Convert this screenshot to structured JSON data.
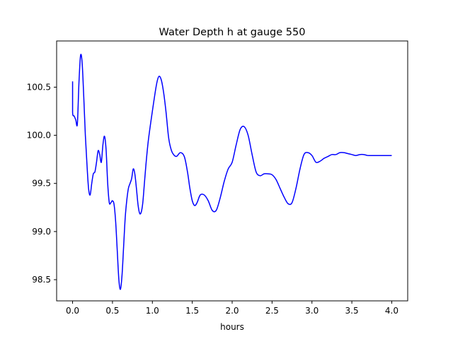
{
  "chart_data": {
    "type": "line",
    "title": "Water Depth h at gauge 550",
    "xlabel": "hours",
    "ylabel": "",
    "xlim": [
      -0.2,
      4.2
    ],
    "ylim": [
      98.28,
      100.98
    ],
    "xticks": [
      0.0,
      0.5,
      1.0,
      1.5,
      2.0,
      2.5,
      3.0,
      3.5,
      4.0
    ],
    "xtick_labels": [
      "0.0",
      "0.5",
      "1.0",
      "1.5",
      "2.0",
      "2.5",
      "3.0",
      "3.5",
      "4.0"
    ],
    "yticks": [
      98.5,
      99.0,
      99.5,
      100.0,
      100.5
    ],
    "ytick_labels": [
      "98.5",
      "99.0",
      "99.5",
      "100.0",
      "100.5"
    ],
    "grid": false,
    "line_color": "#0000ff",
    "series": [
      {
        "x": [
          0.0,
          0.0,
          0.02,
          0.04,
          0.06,
          0.08,
          0.1,
          0.12,
          0.14,
          0.16,
          0.18,
          0.2,
          0.22,
          0.24,
          0.26,
          0.28,
          0.3,
          0.32,
          0.34,
          0.36,
          0.38,
          0.4,
          0.42,
          0.44,
          0.46,
          0.48,
          0.5,
          0.52,
          0.54,
          0.56,
          0.58,
          0.6,
          0.62,
          0.64,
          0.66,
          0.68,
          0.7,
          0.72,
          0.74,
          0.76,
          0.78,
          0.8,
          0.82,
          0.84,
          0.86,
          0.88,
          0.9,
          0.92,
          0.95,
          1.0,
          1.05,
          1.08,
          1.11,
          1.14,
          1.17,
          1.2,
          1.22,
          1.25,
          1.3,
          1.35,
          1.4,
          1.44,
          1.47,
          1.5,
          1.53,
          1.56,
          1.6,
          1.65,
          1.7,
          1.75,
          1.8,
          1.85,
          1.9,
          1.95,
          2.0,
          2.05,
          2.1,
          2.15,
          2.2,
          2.25,
          2.3,
          2.35,
          2.4,
          2.45,
          2.5,
          2.55,
          2.6,
          2.65,
          2.7,
          2.75,
          2.8,
          2.85,
          2.9,
          2.95,
          3.0,
          3.05,
          3.1,
          3.15,
          3.2,
          3.25,
          3.3,
          3.35,
          3.4,
          3.45,
          3.5,
          3.55,
          3.6,
          3.65,
          3.7,
          3.75,
          3.8,
          3.85,
          3.9,
          3.95,
          4.0
        ],
        "y": [
          100.56,
          100.24,
          100.2,
          100.16,
          100.12,
          100.55,
          100.83,
          100.75,
          100.4,
          100.0,
          99.7,
          99.45,
          99.38,
          99.5,
          99.6,
          99.62,
          99.72,
          99.84,
          99.8,
          99.72,
          99.9,
          99.99,
          99.85,
          99.5,
          99.3,
          99.3,
          99.32,
          99.28,
          99.1,
          98.8,
          98.5,
          98.4,
          98.55,
          98.85,
          99.15,
          99.33,
          99.45,
          99.5,
          99.55,
          99.65,
          99.6,
          99.45,
          99.28,
          99.19,
          99.2,
          99.3,
          99.5,
          99.7,
          99.95,
          100.25,
          100.52,
          100.61,
          100.58,
          100.45,
          100.25,
          100.0,
          99.9,
          99.82,
          99.78,
          99.82,
          99.78,
          99.62,
          99.45,
          99.32,
          99.27,
          99.3,
          99.38,
          99.38,
          99.32,
          99.22,
          99.22,
          99.35,
          99.52,
          99.65,
          99.72,
          99.9,
          100.06,
          100.09,
          100.0,
          99.8,
          99.62,
          99.58,
          99.6,
          99.6,
          99.59,
          99.54,
          99.45,
          99.36,
          99.29,
          99.3,
          99.45,
          99.65,
          99.8,
          99.82,
          99.79,
          99.72,
          99.73,
          99.76,
          99.78,
          99.8,
          99.8,
          99.82,
          99.82,
          99.81,
          99.8,
          99.79,
          99.8,
          99.8,
          99.79,
          99.79,
          99.79,
          99.79,
          99.79,
          99.79,
          99.79
        ]
      }
    ]
  }
}
